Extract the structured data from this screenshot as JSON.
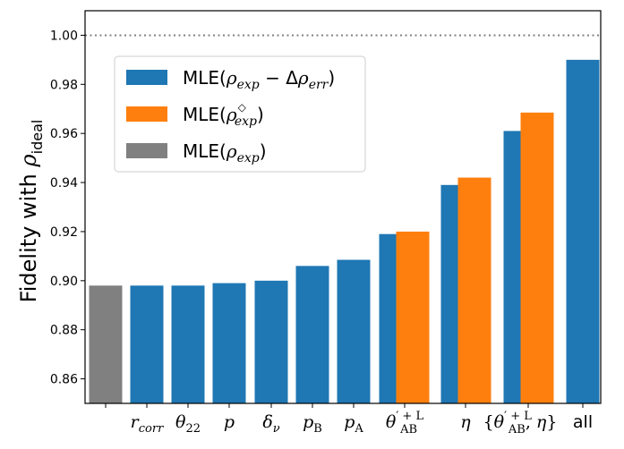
{
  "chart_data": {
    "type": "bar",
    "ylabel": "Fidelity with ρideal",
    "ylim": [
      0.85,
      1.01
    ],
    "yticks": [
      0.86,
      0.88,
      0.9,
      0.92,
      0.94,
      0.96,
      0.98,
      1.0
    ],
    "ytick_labels": [
      "0.86",
      "0.88",
      "0.90",
      "0.92",
      "0.94",
      "0.96",
      "0.98",
      "1.00"
    ],
    "reference_line": {
      "value": 1.0,
      "style": "dotted",
      "color": "#808080"
    },
    "legend_position": "upper-left",
    "colors": {
      "blue": "#1f77b4",
      "orange": "#ff7f0e",
      "gray": "#808080"
    },
    "series": [
      {
        "name": "MLE(ρexp − Δρerr)",
        "color": "#1f77b4"
      },
      {
        "name": "MLE(ρexp◊)",
        "color": "#ff7f0e"
      },
      {
        "name": "MLE(ρexp)",
        "color": "#808080"
      }
    ],
    "bars": [
      {
        "label": "",
        "series": "MLE(ρexp)",
        "value": 0.898
      },
      {
        "label": "rcorr",
        "series": "MLE(ρexp − Δρerr)",
        "value": 0.898
      },
      {
        "label": "θ22",
        "series": "MLE(ρexp − Δρerr)",
        "value": 0.898
      },
      {
        "label": "p",
        "series": "MLE(ρexp − Δρerr)",
        "value": 0.899
      },
      {
        "label": "δν",
        "series": "MLE(ρexp − Δρerr)",
        "value": 0.9
      },
      {
        "label": "pB",
        "series": "MLE(ρexp − Δρerr)",
        "value": 0.906
      },
      {
        "label": "pA",
        "series": "MLE(ρexp − Δρerr)",
        "value": 0.9085
      },
      {
        "label": "θ′AB+L",
        "series": "MLE(ρexp − Δρerr)",
        "value": 0.919
      },
      {
        "label": "θ′AB+L",
        "series": "MLE(ρexp◊)",
        "value": 0.92
      },
      {
        "label": "η",
        "series": "MLE(ρexp − Δρerr)",
        "value": 0.939
      },
      {
        "label": "η",
        "series": "MLE(ρexp◊)",
        "value": 0.942
      },
      {
        "label": "{θ′AB+L, η}",
        "series": "MLE(ρexp − Δρerr)",
        "value": 0.961
      },
      {
        "label": "{θ′AB+L, η}",
        "series": "MLE(ρexp◊)",
        "value": 0.9685
      },
      {
        "label": "all",
        "series": "MLE(ρexp − Δρerr)",
        "value": 0.99
      }
    ]
  }
}
